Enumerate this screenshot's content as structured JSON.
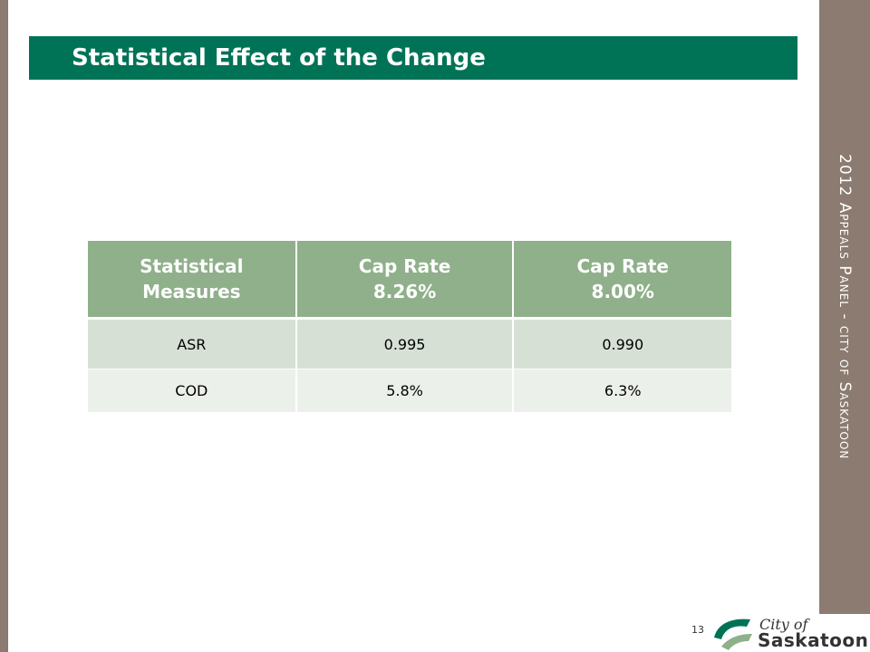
{
  "slide": {
    "title": "Statistical Effect of the Change",
    "side_title": "2012 Appeals Panel - city of Saskatoon",
    "page_number": "13"
  },
  "table": {
    "headers": [
      [
        "Statistical",
        "Measures"
      ],
      [
        "Cap Rate",
        "8.26%"
      ],
      [
        "Cap Rate",
        "8.00%"
      ]
    ],
    "rows": [
      [
        "ASR",
        "0.995",
        "0.990"
      ],
      [
        "COD",
        "5.8%",
        "6.3%"
      ]
    ]
  },
  "logo": {
    "city": "City of",
    "name": "Saskatoon"
  },
  "colors": {
    "banner": "#007356",
    "side_bars": "#8b7b70",
    "header_fill": "#8fb08a",
    "row_odd": "#d7e0d5",
    "row_even": "#ecf0ea"
  }
}
